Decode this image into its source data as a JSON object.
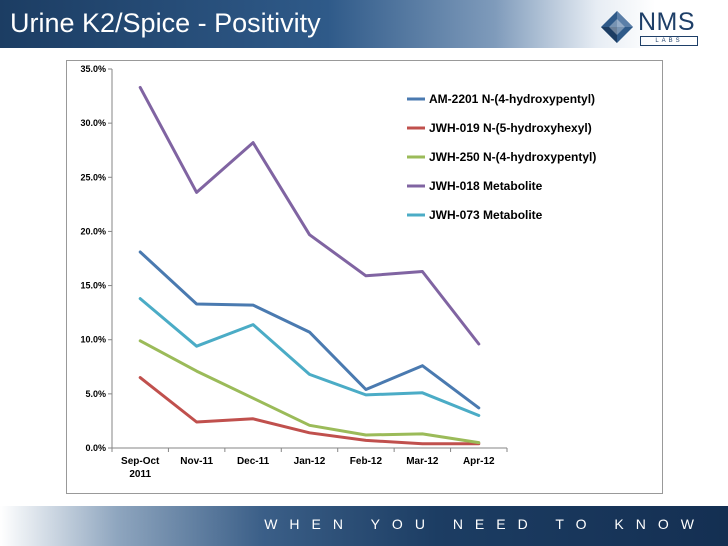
{
  "slide": {
    "title": "Urine K2/Spice - Positivity",
    "footer_tagline": "WHEN YOU NEED TO KNOW"
  },
  "logo": {
    "name": "NMS",
    "sub": "LABS"
  },
  "colors": {
    "header_dark": "#1c3d63",
    "series": [
      "#4a7ab0",
      "#c0504d",
      "#9bbb59",
      "#8064a2",
      "#4bacc6"
    ]
  },
  "chart_data": {
    "type": "line",
    "title": "",
    "xlabel": "",
    "ylabel": "",
    "categories": [
      [
        "Sep-Oct",
        "2011"
      ],
      [
        "Nov-11"
      ],
      [
        "Dec-11"
      ],
      [
        "Jan-12"
      ],
      [
        "Feb-12"
      ],
      [
        "Mar-12"
      ],
      [
        "Apr-12"
      ]
    ],
    "ylim": [
      0,
      35
    ],
    "yticks": [
      "0.0%",
      "5.0%",
      "10.0%",
      "15.0%",
      "20.0%",
      "25.0%",
      "30.0%",
      "35.0%"
    ],
    "ytick_values": [
      0,
      5,
      10,
      15,
      20,
      25,
      30,
      35
    ],
    "grid": false,
    "legend_position": "top-right",
    "series": [
      {
        "name": "AM-2201 N-(4-hydroxypentyl)",
        "color": "#4a7ab0",
        "values": [
          18.1,
          13.3,
          13.2,
          10.7,
          5.4,
          7.6,
          3.7
        ]
      },
      {
        "name": "JWH-019 N-(5-hydroxyhexyl)",
        "color": "#c0504d",
        "values": [
          6.5,
          2.4,
          2.7,
          1.4,
          0.7,
          0.4,
          0.4
        ]
      },
      {
        "name": "JWH-250 N-(4-hydroxypentyl)",
        "color": "#9bbb59",
        "values": [
          9.9,
          7.1,
          4.6,
          2.1,
          1.2,
          1.3,
          0.5
        ]
      },
      {
        "name": "JWH-018 Metabolite",
        "color": "#8064a2",
        "values": [
          33.3,
          23.6,
          28.2,
          19.7,
          15.9,
          16.3,
          9.6
        ]
      },
      {
        "name": "JWH-073 Metabolite",
        "color": "#4bacc6",
        "values": [
          13.8,
          9.4,
          11.4,
          6.8,
          4.9,
          5.1,
          3.0
        ]
      }
    ]
  }
}
